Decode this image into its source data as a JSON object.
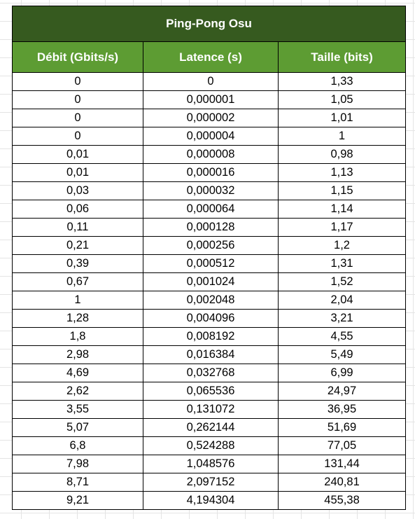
{
  "table": {
    "title": "Ping-Pong Osu",
    "headers": [
      "Débit (Gbits/s)",
      "Latence (s)",
      "Taille (bits)"
    ],
    "rows": [
      [
        "0",
        "0",
        "1,33"
      ],
      [
        "0",
        "0,000001",
        "1,05"
      ],
      [
        "0",
        "0,000002",
        "1,01"
      ],
      [
        "0",
        "0,000004",
        "1"
      ],
      [
        "0,01",
        "0,000008",
        "0,98"
      ],
      [
        "0,01",
        "0,000016",
        "1,13"
      ],
      [
        "0,03",
        "0,000032",
        "1,15"
      ],
      [
        "0,06",
        "0,000064",
        "1,14"
      ],
      [
        "0,11",
        "0,000128",
        "1,17"
      ],
      [
        "0,21",
        "0,000256",
        "1,2"
      ],
      [
        "0,39",
        "0,000512",
        "1,31"
      ],
      [
        "0,67",
        "0,001024",
        "1,52"
      ],
      [
        "1",
        "0,002048",
        "2,04"
      ],
      [
        "1,28",
        "0,004096",
        "3,21"
      ],
      [
        "1,8",
        "0,008192",
        "4,55"
      ],
      [
        "2,98",
        "0,016384",
        "5,49"
      ],
      [
        "4,69",
        "0,032768",
        "6,99"
      ],
      [
        "2,62",
        "0,065536",
        "24,97"
      ],
      [
        "3,55",
        "0,131072",
        "36,95"
      ],
      [
        "5,07",
        "0,262144",
        "51,69"
      ],
      [
        "6,8",
        "0,524288",
        "77,05"
      ],
      [
        "7,98",
        "1,048576",
        "131,44"
      ],
      [
        "8,71",
        "2,097152",
        "240,81"
      ],
      [
        "9,21",
        "4,194304",
        "455,38"
      ]
    ]
  },
  "colors": {
    "title_bg": "#365a1f",
    "header_bg": "#5d9c33",
    "header_text": "#ffffff",
    "grid": "#e4e4e4"
  }
}
